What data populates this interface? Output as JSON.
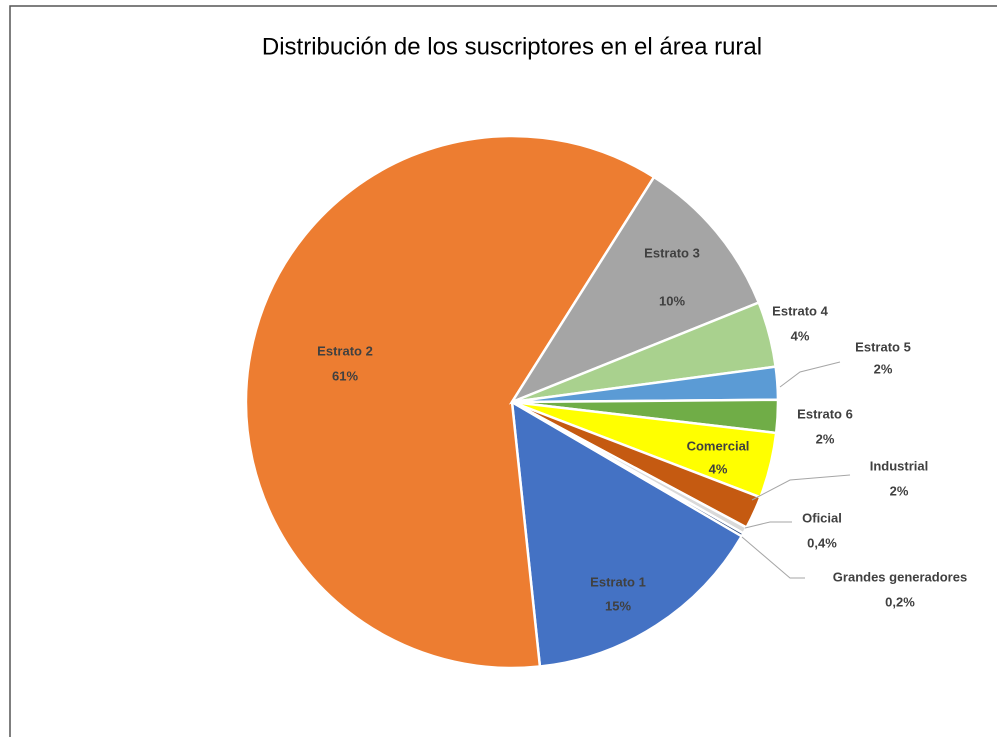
{
  "chart_data": {
    "type": "pie",
    "title": "Distribución de los suscriptores en el área rural",
    "categories": [
      "Estrato 1",
      "Estrato 2",
      "Estrato 3",
      "Estrato 4",
      "Estrato 5",
      "Estrato 6",
      "Comercial",
      "Industrial",
      "Oficial",
      "Grandes generadores"
    ],
    "values": [
      15,
      61,
      10,
      4,
      2,
      2,
      4,
      2,
      0.4,
      0.2
    ],
    "value_labels": [
      "15%",
      "61%",
      "10%",
      "4%",
      "2%",
      "2%",
      "4%",
      "2%",
      "0,4%",
      "0,2%"
    ],
    "colors": [
      "#4472c4",
      "#ed7d31",
      "#a5a5a5",
      "#a9d18e",
      "#5b9bd5",
      "#70ad47",
      "#ffff00",
      "#c55a11",
      "#d9d9d9",
      "#264478"
    ]
  }
}
